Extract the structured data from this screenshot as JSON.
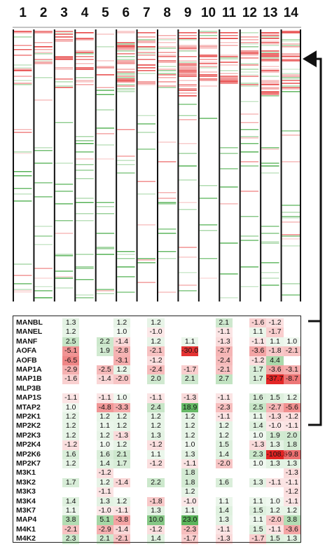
{
  "columns": [
    "1",
    "2",
    "3",
    "4",
    "5",
    "6",
    "7",
    "8",
    "9",
    "10",
    "11",
    "12",
    "13",
    "14"
  ],
  "colors": {
    "red": "#e21f1f",
    "green": "#3aa53a",
    "grid_border": "#222222",
    "bracket": "#111111"
  },
  "table": {
    "rows": [
      {
        "label": "MANBL",
        "values": [
          "1.3",
          "",
          "",
          "1.2",
          "",
          "1.2",
          "",
          "",
          "",
          "2.1",
          "",
          "-1.6",
          "-1.2",
          ""
        ]
      },
      {
        "label": "MANEL",
        "values": [
          "1.2",
          "",
          "",
          "1.0",
          "",
          "-1.0",
          "",
          "",
          "",
          "-1.1",
          "",
          "1.1",
          "-1.7",
          ""
        ]
      },
      {
        "label": "MANF",
        "values": [
          "2.5",
          "",
          "2.2",
          "-1.4",
          "",
          "1.2",
          "",
          "1.1",
          "",
          "-1.3",
          "",
          "-1.1",
          "1.1",
          "1.0"
        ]
      },
      {
        "label": "AOFA",
        "values": [
          "-5.1",
          "",
          "1.9",
          "-2.8",
          "",
          "-2.1",
          "",
          "-30.0",
          "",
          "-2.7",
          "",
          "-3.6",
          "-1.8",
          "-2.1"
        ]
      },
      {
        "label": "AOFB",
        "values": [
          "-6.5",
          "",
          "",
          "-3.1",
          "",
          "-1.2",
          "",
          "",
          "",
          "-2.4",
          "",
          "-1.2",
          "4.4",
          ""
        ]
      },
      {
        "label": "MAP1A",
        "values": [
          "-2.9",
          "",
          "-2.5",
          "1.2",
          "",
          "-2.4",
          "",
          "-1.7",
          "",
          "-2.1",
          "",
          "1.7",
          "-3.6",
          "-3.1"
        ]
      },
      {
        "label": "MAP1B",
        "values": [
          "-1.6",
          "",
          "-1.4",
          "-2.0",
          "",
          "2.0",
          "",
          "2.1",
          "",
          "2.7",
          "",
          "1.7",
          "-37.7",
          "-8.7"
        ]
      },
      {
        "label": "MLP3B",
        "values": [
          "",
          "",
          "",
          "",
          "",
          "",
          "",
          "",
          "",
          "",
          "",
          "",
          "",
          ""
        ]
      },
      {
        "label": "MAP1S",
        "values": [
          "-1.1",
          "",
          "-1.1",
          "1.0",
          "",
          "-1.1",
          "",
          "-1.3",
          "",
          "-1.1",
          "",
          "1.6",
          "1.5",
          "1.2"
        ]
      },
      {
        "label": "MTAP2",
        "values": [
          "1.0",
          "",
          "-4.8",
          "-3.3",
          "",
          "2.4",
          "",
          "18.9",
          "",
          "-2.3",
          "",
          "2.5",
          "-2.7",
          "-5.6"
        ]
      },
      {
        "label": "MP2K1",
        "values": [
          "1.2",
          "",
          "1.2",
          "1.2",
          "",
          "1.2",
          "",
          "1.2",
          "",
          "-1.1",
          "",
          "1.1",
          "-1.3",
          "-1.2"
        ]
      },
      {
        "label": "MP2K2",
        "values": [
          "1.2",
          "",
          "1.1",
          "1.2",
          "",
          "1.2",
          "",
          "1.2",
          "",
          "1.2",
          "",
          "1.4",
          "-1.0",
          "-1.1"
        ]
      },
      {
        "label": "MP2K3",
        "values": [
          "1.2",
          "",
          "1.2",
          "-1.3",
          "",
          "1.3",
          "",
          "1.2",
          "",
          "1.2",
          "",
          "1.0",
          "1.9",
          "2.0"
        ]
      },
      {
        "label": "MP2K4",
        "values": [
          "-1.2",
          "",
          "1.0",
          "1.2",
          "",
          "-1.2",
          "",
          "1.0",
          "",
          "1.5",
          "",
          "-1.3",
          "1.3",
          "1.8"
        ]
      },
      {
        "label": "MP2K6",
        "values": [
          "1.6",
          "",
          "1.6",
          "2.1",
          "",
          "1.1",
          "",
          "1.3",
          "",
          "1.4",
          "",
          "2.3",
          "-108.8",
          "-9.8"
        ]
      },
      {
        "label": "MP2K7",
        "values": [
          "1.2",
          "",
          "1.4",
          "1.7",
          "",
          "-1.2",
          "",
          "-1.1",
          "",
          "-2.0",
          "",
          "1.0",
          "1.3",
          "1.3"
        ]
      },
      {
        "label": "M3K1",
        "values": [
          "",
          "",
          "-1.2",
          "",
          "",
          "",
          "",
          "1.8",
          "",
          "",
          "",
          "",
          "",
          "-1.3"
        ]
      },
      {
        "label": "M3K2",
        "values": [
          "1.7",
          "",
          "1.2",
          "-1.4",
          "",
          "2.2",
          "",
          "1.8",
          "",
          "1.6",
          "",
          "1.3",
          "-1.1",
          "-1.1"
        ]
      },
      {
        "label": "M3K3",
        "values": [
          "",
          "",
          "-1.1",
          "",
          "",
          "",
          "",
          "1.2",
          "",
          "",
          "",
          "",
          "",
          "-1.2"
        ]
      },
      {
        "label": "M3K4",
        "values": [
          "1.4",
          "",
          "1.3",
          "1.2",
          "",
          "-1.8",
          "",
          "-1.0",
          "",
          "1.1",
          "",
          "1.1",
          "1.0",
          "-1.1"
        ]
      },
      {
        "label": "M3K7",
        "values": [
          "1.1",
          "",
          "-1.0",
          "-1.1",
          "",
          "1.3",
          "",
          "1.1",
          "",
          "1.4",
          "",
          "1.5",
          "1.2",
          "1.2"
        ]
      },
      {
        "label": "MAP4",
        "values": [
          "3.8",
          "",
          "5.1",
          "-3.8",
          "",
          "10.0",
          "",
          "23.0",
          "",
          "1.3",
          "",
          "1.1",
          "-2.0",
          "3.8"
        ]
      },
      {
        "label": "M4K1",
        "values": [
          "-2.1",
          "",
          "-2.9",
          "-1.4",
          "",
          "-1.2",
          "",
          "-2.3",
          "",
          "-1.1",
          "",
          "1.5",
          "-1.1",
          "-3.6"
        ]
      },
      {
        "label": "M4K2",
        "values": [
          "2.3",
          "",
          "2.1",
          "-2.1",
          "",
          "1.4",
          "",
          "-1.7",
          "",
          "-1.3",
          "",
          "-1.7",
          "1.5",
          "1.3"
        ]
      }
    ]
  }
}
